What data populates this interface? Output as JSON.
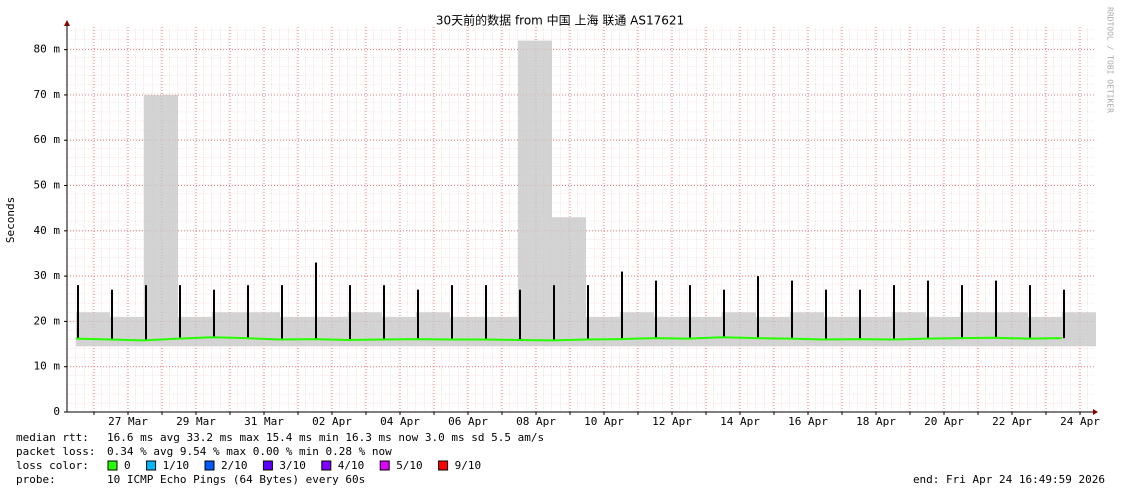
{
  "chart_data": {
    "type": "smokeping",
    "title": "30天前的数据 from 中国 上海 联通 AS17621",
    "y_label": "Seconds",
    "watermark": "RRDTOOL / TOBI OETIKER",
    "categories": [
      null,
      "27 Mar",
      null,
      "29 Mar",
      null,
      "31 Mar",
      null,
      "02 Apr",
      null,
      "04 Apr",
      null,
      "06 Apr",
      null,
      "08 Apr",
      null,
      "10 Apr",
      null,
      "12 Apr",
      null,
      "14 Apr",
      null,
      "16 Apr",
      null,
      "18 Apr",
      null,
      "20 Apr",
      null,
      "22 Apr",
      null,
      "24 Apr"
    ],
    "ylim": [
      0,
      0.085
    ],
    "yticks": [
      0,
      {
        "value": 0.01,
        "label": "10 m"
      },
      {
        "value": 0.02,
        "label": "20 m"
      },
      {
        "value": 0.03,
        "label": "30 m"
      },
      {
        "value": 0.04,
        "label": "40 m"
      },
      {
        "value": 0.05,
        "label": "50 m"
      },
      {
        "value": 0.06,
        "label": "60 m"
      },
      {
        "value": 0.07,
        "label": "70 m"
      },
      {
        "value": 0.08,
        "label": "80 m"
      }
    ],
    "grid": true,
    "series": [
      {
        "color": "#c8c8c8",
        "values": [
          0.022,
          0.021,
          0.07,
          0.021,
          0.022,
          0.022,
          0.021,
          0.021,
          0.022,
          0.021,
          0.022,
          0.021,
          0.021,
          0.082,
          0.043,
          0.021,
          0.022,
          0.021,
          0.021,
          0.022,
          0.021,
          0.022,
          0.021,
          0.021,
          0.022,
          0.021,
          0.022,
          0.022,
          0.021,
          0.022
        ]
      },
      {
        "color": "#c8c8c8",
        "values": [
          0.0145,
          0.0145,
          0.0145,
          0.0145,
          0.0145,
          0.0145,
          0.0145,
          0.0145,
          0.0145,
          0.0145,
          0.0145,
          0.0145,
          0.0145,
          0.0145,
          0.0145,
          0.0145,
          0.0145,
          0.0145,
          0.0145,
          0.0145,
          0.0145,
          0.0145,
          0.0145,
          0.0145,
          0.0145,
          0.0145,
          0.0145,
          0.0145,
          0.0145,
          0.0145
        ]
      },
      {
        "color": "#000000",
        "values": [
          0.028,
          0.027,
          0.028,
          0.028,
          0.027,
          0.028,
          0.028,
          0.033,
          0.028,
          0.028,
          0.027,
          0.028,
          0.028,
          0.027,
          0.028,
          0.028,
          0.031,
          0.029,
          0.028,
          0.027,
          0.03,
          0.029,
          0.027,
          0.027,
          0.028,
          0.029,
          0.028,
          0.029,
          0.028,
          0.027
        ]
      },
      {
        "color": "#26ff00",
        "values": [
          0.0162,
          0.016,
          0.0158,
          0.0162,
          0.0165,
          0.0163,
          0.016,
          0.0161,
          0.0159,
          0.016,
          0.0161,
          0.016,
          0.016,
          0.0159,
          0.0158,
          0.016,
          0.0161,
          0.0163,
          0.0162,
          0.0165,
          0.0163,
          0.0162,
          0.016,
          0.0161,
          0.016,
          0.0162,
          0.0163,
          0.0164,
          0.0162,
          0.0163
        ]
      }
    ],
    "stats": [
      {
        "label": "median rtt:",
        "text": "16.6 ms avg  33.2 ms max  15.4 ms min  16.3 ms now  3.0 ms sd  5.5   am/s"
      },
      {
        "label": "packet loss:",
        "text": "0.34 % avg  9.54 % max  0.00 % min  0.28 % now"
      }
    ],
    "loss_label": "loss color:",
    "loss_colors": [
      {
        "label": "0",
        "color": "#26ff00"
      },
      {
        "label": "1/10",
        "color": "#00b8ff"
      },
      {
        "label": "2/10",
        "color": "#0059ff"
      },
      {
        "label": "3/10",
        "color": "#5e00ff"
      },
      {
        "label": "4/10",
        "color": "#7e00ff"
      },
      {
        "label": "5/10",
        "color": "#dd00ff"
      },
      {
        "label": "9/10",
        "color": "#ff0000"
      }
    ],
    "probe_label": "probe:",
    "probe": "10 ICMP Echo Pings (64 Bytes) every 60s",
    "end": "end: Fri Apr 24 16:49:59 2026"
  }
}
